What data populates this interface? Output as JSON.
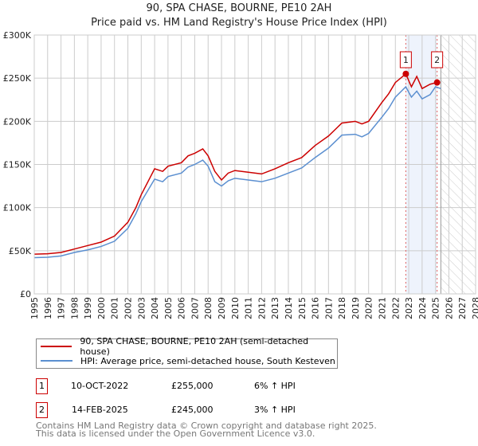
{
  "chart_data": {
    "type": "line",
    "title": "90, SPA CHASE, BOURNE, PE10 2AH",
    "subtitle": "Price paid vs. HM Land Registry's House Price Index (HPI)",
    "xlim": [
      1995,
      2028
    ],
    "ylim": [
      0,
      300000
    ],
    "x_ticks": [
      "1995",
      "1996",
      "1997",
      "1998",
      "1999",
      "2000",
      "2001",
      "2002",
      "2003",
      "2004",
      "2005",
      "2006",
      "2007",
      "2008",
      "2009",
      "2010",
      "2011",
      "2012",
      "2013",
      "2014",
      "2015",
      "2016",
      "2017",
      "2018",
      "2019",
      "2020",
      "2021",
      "2022",
      "2023",
      "2024",
      "2025",
      "2026",
      "2027",
      "2028"
    ],
    "y_ticks": [
      {
        "v": 0,
        "label": "£0"
      },
      {
        "v": 50000,
        "label": "£50K"
      },
      {
        "v": 100000,
        "label": "£100K"
      },
      {
        "v": 150000,
        "label": "£150K"
      },
      {
        "v": 200000,
        "label": "£200K"
      },
      {
        "v": 250000,
        "label": "£250K"
      },
      {
        "v": 300000,
        "label": "£300K"
      }
    ],
    "grid": true,
    "series": [
      {
        "name": "90, SPA CHASE, BOURNE, PE10 2AH (semi-detached house)",
        "color": "#cc0000",
        "x": [
          1995,
          1996,
          1997,
          1998,
          1999,
          2000,
          2001,
          2002,
          2002.6,
          2003,
          2003.5,
          2004,
          2004.6,
          2005,
          2006,
          2006.5,
          2007,
          2007.6,
          2008,
          2008.5,
          2009,
          2009.5,
          2010,
          2011,
          2012,
          2013,
          2014,
          2015,
          2016,
          2017,
          2017.6,
          2018,
          2019,
          2019.5,
          2020,
          2021,
          2021.5,
          2022,
          2022.78,
          2023.2,
          2023.6,
          2024,
          2024.6,
          2025.12
        ],
        "values": [
          46000,
          46500,
          48000,
          52000,
          56000,
          60000,
          67000,
          83000,
          100000,
          115000,
          130000,
          145000,
          142000,
          148000,
          152000,
          160000,
          163000,
          168000,
          160000,
          142000,
          132000,
          140000,
          143000,
          141000,
          139000,
          145000,
          152000,
          158000,
          172000,
          183000,
          192000,
          198000,
          200000,
          197000,
          200000,
          222000,
          232000,
          245000,
          255000,
          240000,
          252000,
          238000,
          243000,
          245000
        ]
      },
      {
        "name": "HPI: Average price, semi-detached house, South Kesteven",
        "color": "#5b8fd0",
        "x": [
          1995,
          1996,
          1997,
          1998,
          1999,
          2000,
          2001,
          2002,
          2002.6,
          2003,
          2003.5,
          2004,
          2004.6,
          2005,
          2006,
          2006.5,
          2007,
          2007.6,
          2008,
          2008.5,
          2009,
          2009.5,
          2010,
          2011,
          2012,
          2013,
          2014,
          2015,
          2016,
          2017,
          2017.6,
          2018,
          2019,
          2019.5,
          2020,
          2021,
          2021.5,
          2022,
          2022.78,
          2023.2,
          2023.6,
          2024,
          2024.6,
          2025,
          2025.4
        ],
        "values": [
          42000,
          42500,
          44000,
          48000,
          51000,
          55000,
          61000,
          76000,
          93000,
          107000,
          120000,
          133000,
          130000,
          136000,
          140000,
          147000,
          150000,
          155000,
          148000,
          130000,
          125000,
          131000,
          134000,
          132000,
          130000,
          134000,
          140000,
          146000,
          158000,
          169000,
          178000,
          184000,
          185000,
          182000,
          186000,
          205000,
          215000,
          228000,
          240000,
          228000,
          235000,
          226000,
          231000,
          240000,
          238000
        ]
      }
    ],
    "annotations": [
      {
        "label": "1",
        "x": 2022.78,
        "value": 255000,
        "date": "10-OCT-2022",
        "price": "£255,000",
        "hpi": "6% ↑ HPI"
      },
      {
        "label": "2",
        "x": 2025.12,
        "value": 245000,
        "date": "14-FEB-2025",
        "price": "£245,000",
        "hpi": "3% ↑ HPI"
      }
    ],
    "shaded_range": [
      2022.78,
      2025.12
    ],
    "forecast_from": 2025.4
  },
  "footer": {
    "line1": "Contains HM Land Registry data © Crown copyright and database right 2025.",
    "line2": "This data is licensed under the Open Government Licence v3.0."
  }
}
